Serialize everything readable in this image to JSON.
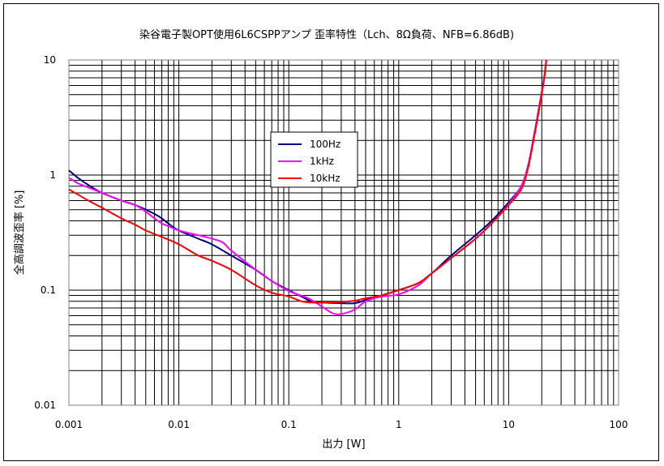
{
  "chart_data": {
    "type": "line",
    "title": "染谷電子製OPT使用6L6CSPPアンプ 歪率特性（Lch、8Ω負荷、NFB=6.86dB)",
    "xlabel": "出力 [W]",
    "ylabel": "全高調波歪率 [%]",
    "xscale": "log",
    "yscale": "log",
    "xlim": [
      0.001,
      100
    ],
    "ylim": [
      0.01,
      10
    ],
    "xticks": [
      "0.001",
      "0.01",
      "0.1",
      "1",
      "10",
      "100"
    ],
    "yticks": [
      "0.01",
      "0.1",
      "1",
      "10"
    ],
    "grid": true,
    "legend_position": "upper-center",
    "series": [
      {
        "name": "100Hz",
        "color": "#000080",
        "x": [
          0.001,
          0.0012,
          0.0015,
          0.002,
          0.003,
          0.004,
          0.005,
          0.006,
          0.007,
          0.008,
          0.01,
          0.015,
          0.02,
          0.03,
          0.05,
          0.07,
          0.1,
          0.13,
          0.16,
          0.2,
          0.3,
          0.4,
          0.5,
          0.7,
          1.0,
          1.5,
          2.0,
          3.0,
          5.0,
          7.0,
          10,
          13,
          15,
          17,
          19,
          21,
          22
        ],
        "y": [
          1.1,
          0.95,
          0.82,
          0.7,
          0.6,
          0.55,
          0.5,
          0.46,
          0.42,
          0.38,
          0.33,
          0.28,
          0.25,
          0.2,
          0.15,
          0.12,
          0.1,
          0.088,
          0.08,
          0.078,
          0.077,
          0.077,
          0.082,
          0.09,
          0.1,
          0.115,
          0.14,
          0.2,
          0.3,
          0.4,
          0.58,
          0.8,
          1.2,
          2.2,
          4.0,
          7.0,
          10
        ]
      },
      {
        "name": "1kHz",
        "color": "#ff00ff",
        "x": [
          0.001,
          0.0012,
          0.0015,
          0.002,
          0.003,
          0.004,
          0.005,
          0.006,
          0.007,
          0.008,
          0.01,
          0.015,
          0.02,
          0.025,
          0.03,
          0.05,
          0.07,
          0.1,
          0.15,
          0.2,
          0.25,
          0.3,
          0.4,
          0.5,
          0.7,
          1.0,
          1.5,
          2.0,
          3.0,
          5.0,
          7.0,
          10,
          13,
          15,
          17,
          19,
          21,
          22
        ],
        "y": [
          0.95,
          0.85,
          0.78,
          0.7,
          0.6,
          0.55,
          0.48,
          0.42,
          0.38,
          0.36,
          0.33,
          0.3,
          0.28,
          0.26,
          0.22,
          0.15,
          0.12,
          0.098,
          0.085,
          0.072,
          0.063,
          0.062,
          0.068,
          0.08,
          0.088,
          0.092,
          0.11,
          0.14,
          0.19,
          0.28,
          0.38,
          0.56,
          0.8,
          1.2,
          2.2,
          4.0,
          7.0,
          10
        ]
      },
      {
        "name": "10kHz",
        "color": "#ff0000",
        "x": [
          0.001,
          0.0012,
          0.0015,
          0.002,
          0.003,
          0.004,
          0.005,
          0.007,
          0.01,
          0.015,
          0.02,
          0.03,
          0.05,
          0.07,
          0.1,
          0.13,
          0.16,
          0.2,
          0.3,
          0.4,
          0.5,
          0.7,
          1.0,
          1.5,
          2.0,
          3.0,
          5.0,
          7.0,
          10,
          13,
          15,
          17,
          19,
          21,
          22
        ],
        "y": [
          0.75,
          0.68,
          0.6,
          0.52,
          0.42,
          0.37,
          0.33,
          0.29,
          0.25,
          0.2,
          0.18,
          0.15,
          0.11,
          0.095,
          0.088,
          0.08,
          0.078,
          0.078,
          0.079,
          0.081,
          0.085,
          0.09,
          0.1,
          0.115,
          0.14,
          0.19,
          0.28,
          0.38,
          0.55,
          0.75,
          1.15,
          2.1,
          3.8,
          6.8,
          10
        ]
      }
    ]
  }
}
